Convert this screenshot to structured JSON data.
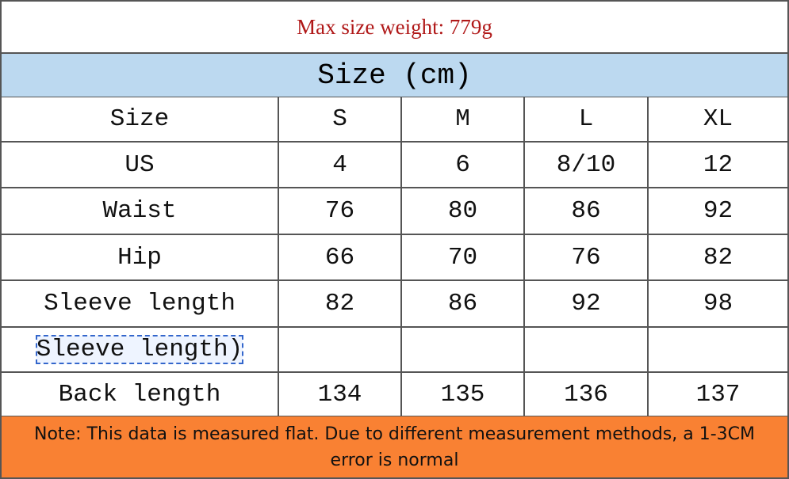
{
  "caption": "Max size weight: 779g",
  "header": "Size (cm)",
  "table": {
    "rows": [
      [
        "Size",
        "S",
        "M",
        "L",
        "XL"
      ],
      [
        "US",
        4,
        6,
        "8/10",
        12
      ],
      [
        "Waist",
        76,
        80,
        86,
        92
      ],
      [
        "Hip",
        66,
        70,
        76,
        82
      ],
      [
        "Sleeve length",
        82,
        86,
        92,
        98
      ],
      [
        "Sleeve length)",
        null,
        null,
        null,
        null
      ],
      [
        "Back length",
        134,
        135,
        136,
        137
      ]
    ]
  },
  "note": "Note: This data is measured flat. Due to different measurement methods, a 1-3CM error is normal"
}
